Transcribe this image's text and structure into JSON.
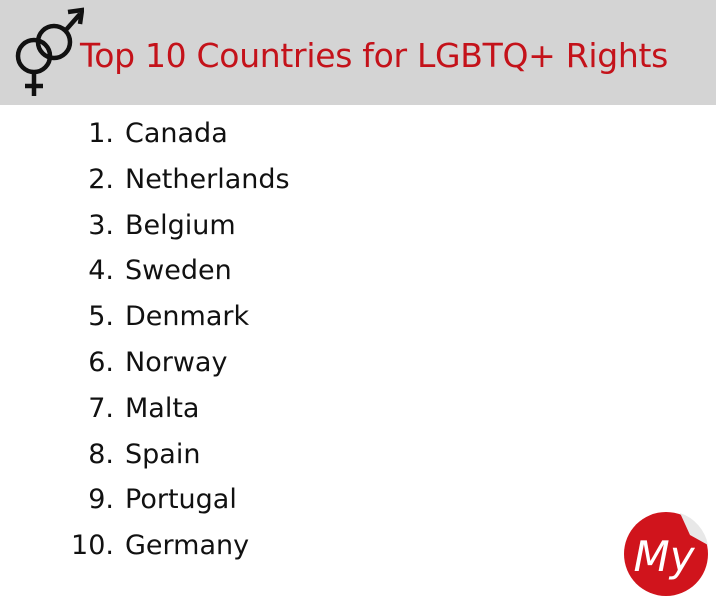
{
  "header": {
    "title": "Top 10 Countries for LGBTQ+ Rights"
  },
  "list": [
    {
      "number": "1.",
      "name": "Canada"
    },
    {
      "number": "2.",
      "name": "Netherlands"
    },
    {
      "number": "3.",
      "name": "Belgium"
    },
    {
      "number": "4.",
      "name": "Sweden"
    },
    {
      "number": "5.",
      "name": "Denmark"
    },
    {
      "number": "6.",
      "name": "Norway"
    },
    {
      "number": "7.",
      "name": "Malta"
    },
    {
      "number": "8.",
      "name": "Spain"
    },
    {
      "number": "9.",
      "name": "Portugal"
    },
    {
      "number": "10.",
      "name": "Germany"
    }
  ],
  "logo": {
    "text": "My"
  }
}
